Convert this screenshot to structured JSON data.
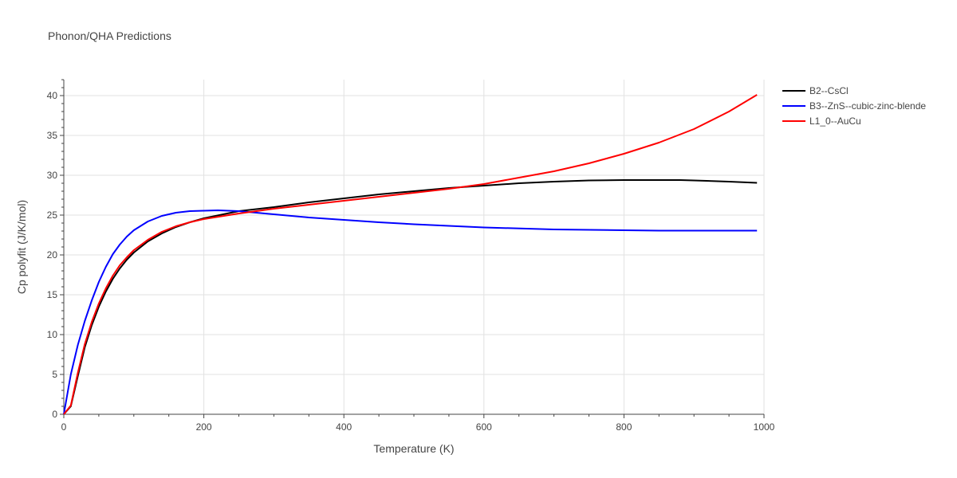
{
  "chart_data": {
    "type": "line",
    "title": "Phonon/QHA Predictions",
    "xlabel": "Temperature (K)",
    "ylabel": "Cp polyfit (J/K/mol)",
    "xlim": [
      0,
      1000
    ],
    "ylim": [
      0,
      42
    ],
    "xticks": [
      0,
      200,
      400,
      600,
      800,
      1000
    ],
    "yticks": [
      0,
      5,
      10,
      15,
      20,
      25,
      30,
      35,
      40
    ],
    "grid": true,
    "legend_position": "top-right",
    "series": [
      {
        "name": "B2--CsCl",
        "color": "#000000",
        "x": [
          0,
          10,
          20,
          30,
          40,
          50,
          60,
          70,
          80,
          90,
          100,
          120,
          140,
          160,
          180,
          200,
          250,
          300,
          350,
          400,
          450,
          500,
          550,
          600,
          650,
          700,
          750,
          800,
          850,
          880,
          900,
          950,
          990
        ],
        "y": [
          0,
          1.0,
          4.8,
          8.4,
          11.2,
          13.5,
          15.4,
          17.0,
          18.3,
          19.4,
          20.3,
          21.7,
          22.7,
          23.5,
          24.1,
          24.6,
          25.5,
          26.0,
          26.6,
          27.1,
          27.6,
          28.0,
          28.4,
          28.7,
          29.0,
          29.2,
          29.35,
          29.4,
          29.4,
          29.4,
          29.35,
          29.2,
          29.05
        ]
      },
      {
        "name": "B3--ZnS--cubic-zinc-blende",
        "color": "#0000ff",
        "x": [
          0,
          10,
          20,
          30,
          40,
          50,
          60,
          70,
          80,
          90,
          100,
          120,
          140,
          160,
          180,
          200,
          220,
          250,
          300,
          350,
          400,
          450,
          500,
          600,
          700,
          800,
          850,
          900,
          990
        ],
        "y": [
          0,
          5.0,
          8.7,
          11.7,
          14.3,
          16.6,
          18.5,
          20.1,
          21.3,
          22.3,
          23.1,
          24.2,
          24.9,
          25.3,
          25.5,
          25.55,
          25.6,
          25.5,
          25.1,
          24.7,
          24.4,
          24.1,
          23.85,
          23.45,
          23.2,
          23.1,
          23.05,
          23.05,
          23.05
        ]
      },
      {
        "name": "L1_0--AuCu",
        "color": "#ff0000",
        "x": [
          0,
          10,
          20,
          30,
          40,
          50,
          60,
          70,
          80,
          90,
          100,
          120,
          140,
          160,
          180,
          200,
          250,
          300,
          350,
          400,
          450,
          500,
          550,
          600,
          650,
          700,
          750,
          800,
          850,
          900,
          950,
          990
        ],
        "y": [
          0,
          1.1,
          5.2,
          8.8,
          11.6,
          13.9,
          15.8,
          17.4,
          18.7,
          19.7,
          20.6,
          21.9,
          22.9,
          23.6,
          24.1,
          24.5,
          25.2,
          25.8,
          26.3,
          26.8,
          27.3,
          27.8,
          28.3,
          28.9,
          29.7,
          30.5,
          31.5,
          32.7,
          34.1,
          35.8,
          38.0,
          40.1
        ]
      }
    ]
  }
}
